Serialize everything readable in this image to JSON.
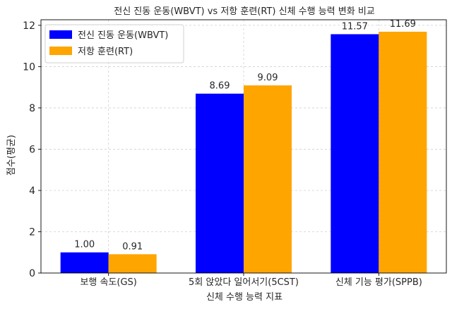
{
  "chart_data": {
    "type": "bar",
    "title": "전신 진동 운동(WBVT) vs 저항 훈련(RT) 신체 수행 능력 변화 비교",
    "xlabel": "신체 수행 능력 지표",
    "ylabel": "점수(평균)",
    "categories": [
      "보행 속도(GS)",
      "5회 앉았다 일어서기(5CST)",
      "신체 기능 평가(SPPB)"
    ],
    "series": [
      {
        "name": "전신 진동 운동(WBVT)",
        "color": "#0000ff",
        "values": [
          1.0,
          8.69,
          11.57
        ],
        "labels": [
          "1.00",
          "8.69",
          "11.57"
        ]
      },
      {
        "name": "저항 훈련(RT)",
        "color": "#ffa500",
        "values": [
          0.91,
          9.09,
          11.69
        ],
        "labels": [
          "0.91",
          "9.09",
          "11.69"
        ]
      }
    ],
    "ylim": [
      0,
      12.27
    ],
    "yticks": [
      0,
      2,
      4,
      6,
      8,
      10,
      12
    ],
    "grid": true,
    "legend": "top-left"
  }
}
